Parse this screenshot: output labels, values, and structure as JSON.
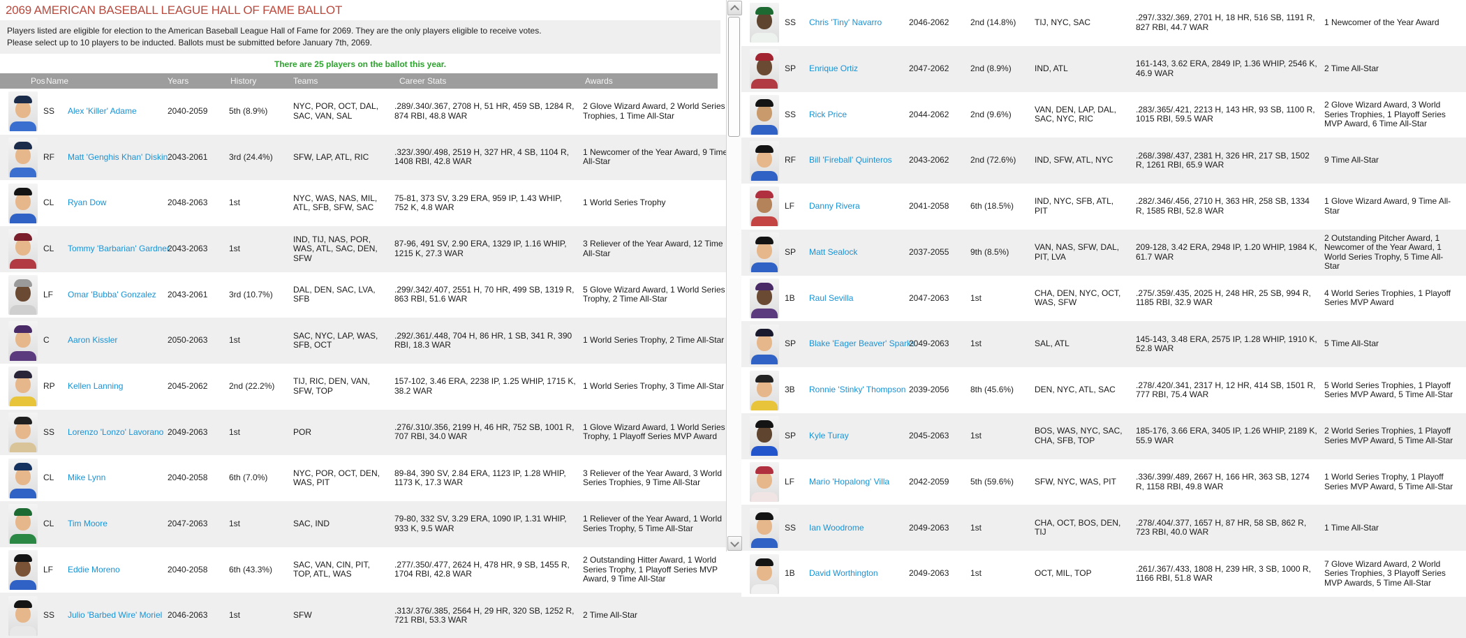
{
  "page": {
    "title": "2069 AMERICAN BASEBALL LEAGUE HALL OF FAME BALLOT",
    "description_lines": [
      "Players listed are eligible for election to the American Baseball League Hall of Fame for 2069. They are the only players eligible to receive votes.",
      "Please select up to 10 players to be inducted. Ballots must be submitted before January 7th, 2069."
    ],
    "ballot_note": "There are 25 players on the ballot this year.",
    "colors": {
      "title_red": "#b8493d",
      "note_green": "#2ca32c",
      "link_blue": "#1992d4",
      "header_bg": "#9d9d9d",
      "row_alt_bg": "#efefef"
    }
  },
  "table": {
    "columns": [
      "Pos",
      "Name",
      "Years",
      "History",
      "Teams",
      "Career Stats",
      "Awards"
    ],
    "players_left": [
      {
        "pos": "SS",
        "name": "Alex 'Killer' Adame",
        "years": "2040-2059",
        "history": "5th (8.9%)",
        "teams": "NYC, POR, OCT, DAL, SAC, VAN, SAL",
        "stats": ".289/.340/.367, 2708 H, 51 HR, 459 SB, 1284 R, 874 RBI, 48.8 WAR",
        "awards": "2 Glove Wizard Award, 2 World Series Trophies, 1 Time All-Star",
        "photo": {
          "cap": "#1b2b4a",
          "skin": "#e7b78c",
          "jersey": "#3a6fd0"
        }
      },
      {
        "pos": "RF",
        "name": "Matt 'Genghis Khan' Diskin",
        "years": "2043-2061",
        "history": "3rd (24.4%)",
        "teams": "SFW, LAP, ATL, RIC",
        "stats": ".323/.390/.498, 2519 H, 327 HR, 4 SB, 1104 R, 1408 RBI, 42.8 WAR",
        "awards": "1 Newcomer of the Year Award, 9 Time All-Star",
        "photo": {
          "cap": "#1b2b4a",
          "skin": "#e7b78c",
          "jersey": "#3a6fd0"
        }
      },
      {
        "pos": "CL",
        "name": "Ryan Dow",
        "years": "2048-2063",
        "history": "1st",
        "teams": "NYC, WAS, NAS, MIL, ATL, SFB, SFW, SAC",
        "stats": "75-81, 373 SV, 3.29 ERA, 959 IP, 1.43 WHIP, 752 K, 4.8 WAR",
        "awards": "1 World Series Trophy",
        "photo": {
          "cap": "#141414",
          "skin": "#e7b78c",
          "jersey": "#2f62c4"
        }
      },
      {
        "pos": "CL",
        "name": "Tommy 'Barbarian' Gardner",
        "years": "2043-2063",
        "history": "1st",
        "teams": "IND, TIJ, NAS, POR, WAS, ATL, SAC, DEN, SFW",
        "stats": "87-96, 491 SV, 2.90 ERA, 1329 IP, 1.16 WHIP, 1215 K, 27.3 WAR",
        "awards": "3 Reliever of the Year Award, 12 Time All-Star",
        "photo": {
          "cap": "#7a1f2b",
          "skin": "#e7b78c",
          "jersey": "#b23a42"
        }
      },
      {
        "pos": "LF",
        "name": "Omar 'Bubba' Gonzalez",
        "years": "2043-2061",
        "history": "3rd (10.7%)",
        "teams": "DAL, DEN, SAC, LVA, SFB",
        "stats": ".299/.342/.407, 2551 H, 70 HR, 499 SB, 1319 R, 863 RBI, 51.6 WAR",
        "awards": "5 Glove Wizard Award, 1 World Series Trophy, 2 Time All-Star",
        "photo": {
          "cap": "#9a9a9a",
          "skin": "#6b4a33",
          "jersey": "#cfcfcf"
        }
      },
      {
        "pos": "C",
        "name": "Aaron Kissler",
        "years": "2050-2063",
        "history": "1st",
        "teams": "SAC, NYC, LAP, WAS, SFB, OCT",
        "stats": ".292/.361/.448, 704 H, 86 HR, 1 SB, 341 R, 390 RBI, 18.3 WAR",
        "awards": "1 World Series Trophy, 2 Time All-Star",
        "photo": {
          "cap": "#4a2a66",
          "skin": "#e7b78c",
          "jersey": "#5b3b7e"
        }
      },
      {
        "pos": "RP",
        "name": "Kellen Lanning",
        "years": "2045-2062",
        "history": "2nd (22.2%)",
        "teams": "TIJ, RIC, DEN, VAN, SFW, TOP",
        "stats": "157-102, 3.46 ERA, 2238 IP, 1.25 WHIP, 1715 K, 38.2 WAR",
        "awards": "1 World Series Trophy, 3 Time All-Star",
        "photo": {
          "cap": "#2a2438",
          "skin": "#e7b78c",
          "jersey": "#e8c43a"
        }
      },
      {
        "pos": "SS",
        "name": "Lorenzo 'Lonzo' Lavorano",
        "years": "2049-2063",
        "history": "1st",
        "teams": "POR",
        "stats": ".276/.310/.356, 2199 H, 46 HR, 752 SB, 1001 R, 707 RBI, 34.0 WAR",
        "awards": "1 Glove Wizard Award, 1 World Series Trophy, 1 Playoff Series MVP Award",
        "photo": {
          "cap": "#1f1f1f",
          "skin": "#e7b78c",
          "jersey": "#d9c49a"
        }
      },
      {
        "pos": "CL",
        "name": "Mike Lynn",
        "years": "2040-2058",
        "history": "6th (7.0%)",
        "teams": "NYC, POR, OCT, DEN, WAS, PIT",
        "stats": "89-84, 390 SV, 2.84 ERA, 1123 IP, 1.28 WHIP, 1173 K, 17.3 WAR",
        "awards": "3 Reliever of the Year Award, 3 World Series Trophies, 9 Time All-Star",
        "photo": {
          "cap": "#15335e",
          "skin": "#e7b78c",
          "jersey": "#2f62c4"
        }
      },
      {
        "pos": "CL",
        "name": "Tim Moore",
        "years": "2047-2063",
        "history": "1st",
        "teams": "SAC, IND",
        "stats": "79-80, 332 SV, 3.29 ERA, 1090 IP, 1.31 WHIP, 933 K, 9.5 WAR",
        "awards": "1 Reliever of the Year Award, 1 World Series Trophy, 5 Time All-Star",
        "photo": {
          "cap": "#1d6b33",
          "skin": "#e7b78c",
          "jersey": "#2a8844"
        }
      },
      {
        "pos": "LF",
        "name": "Eddie Moreno",
        "years": "2040-2058",
        "history": "6th (43.3%)",
        "teams": "SAC, VAN, CIN, PIT, TOP, ATL, WAS",
        "stats": ".277/.350/.477, 2624 H, 478 HR, 9 SB, 1455 R, 1704 RBI, 42.8 WAR",
        "awards": "2 Outstanding Hitter Award, 1 World Series Trophy, 1 Playoff Series MVP Award, 9 Time All-Star",
        "photo": {
          "cap": "#141414",
          "skin": "#7a5236",
          "jersey": "#2f62c4"
        }
      },
      {
        "pos": "SS",
        "name": "Julio 'Barbed Wire' Moriel",
        "years": "2046-2063",
        "history": "1st",
        "teams": "SFW",
        "stats": ".313/.376/.385, 2564 H, 29 HR, 320 SB, 1252 R, 721 RBI, 53.3 WAR",
        "awards": "2 Time All-Star",
        "photo": {
          "cap": "#141414",
          "skin": "#e7b78c",
          "jersey": "#e8e8e8"
        }
      }
    ],
    "players_right": [
      {
        "pos": "SS",
        "name": "Chris 'Tiny' Navarro",
        "years": "2046-2062",
        "history": "2nd (14.8%)",
        "teams": "TIJ, NYC, SAC",
        "stats": ".297/.332/.369, 2701 H, 18 HR, 516 SB, 1191 R, 827 RBI, 44.7 WAR",
        "awards": "1 Newcomer of the Year Award",
        "photo": {
          "cap": "#1d6b33",
          "skin": "#5f4430",
          "jersey": "#eef2ee"
        }
      },
      {
        "pos": "SP",
        "name": "Enrique Ortiz",
        "years": "2047-2062",
        "history": "2nd (8.9%)",
        "teams": "IND, ATL",
        "stats": "161-143, 3.62 ERA, 2849 IP, 1.36 WHIP, 2546 K, 46.9 WAR",
        "awards": "2 Time All-Star",
        "photo": {
          "cap": "#a32431",
          "skin": "#6b4a33",
          "jersey": "#b23a42"
        }
      },
      {
        "pos": "SS",
        "name": "Rick Price",
        "years": "2044-2062",
        "history": "2nd (9.6%)",
        "teams": "VAN, DEN, LAP, DAL, SAC, NYC, RIC",
        "stats": ".283/.365/.421, 2213 H, 143 HR, 93 SB, 1100 R, 1015 RBI, 59.5 WAR",
        "awards": "2 Glove Wizard Award, 3 World Series Trophies, 1 Playoff Series MVP Award, 6 Time All-Star",
        "photo": {
          "cap": "#141414",
          "skin": "#c99a6b",
          "jersey": "#2f62c4"
        }
      },
      {
        "pos": "RF",
        "name": "Bill 'Fireball' Quinteros",
        "years": "2043-2062",
        "history": "2nd (72.6%)",
        "teams": "IND, SFW, ATL, NYC",
        "stats": ".268/.398/.437, 2381 H, 326 HR, 217 SB, 1502 R, 1261 RBI, 65.9 WAR",
        "awards": "9 Time All-Star",
        "photo": {
          "cap": "#141414",
          "skin": "#e7b78c",
          "jersey": "#2f62c4"
        }
      },
      {
        "pos": "LF",
        "name": "Danny Rivera",
        "years": "2041-2058",
        "history": "6th (18.5%)",
        "teams": "IND, NYC, SFB, ATL, PIT",
        "stats": ".282/.346/.456, 2710 H, 363 HR, 258 SB, 1334 R, 1585 RBI, 52.8 WAR",
        "awards": "1 Glove Wizard Award, 9 Time All-Star",
        "photo": {
          "cap": "#b03040",
          "skin": "#b5835a",
          "jersey": "#c44444"
        }
      },
      {
        "pos": "SP",
        "name": "Matt Sealock",
        "years": "2037-2055",
        "history": "9th (8.5%)",
        "teams": "VAN, NAS, SFW, DAL, PIT, LVA",
        "stats": "209-128, 3.42 ERA, 2948 IP, 1.20 WHIP, 1984 K, 61.7 WAR",
        "awards": "2 Outstanding Pitcher Award, 1 Newcomer of the Year Award, 1 World Series Trophy, 5 Time All-Star",
        "photo": {
          "cap": "#141414",
          "skin": "#e7b78c",
          "jersey": "#2f62c4"
        }
      },
      {
        "pos": "1B",
        "name": "Raul Sevilla",
        "years": "2047-2063",
        "history": "1st",
        "teams": "CHA, DEN, NYC, OCT, WAS, SFW",
        "stats": ".275/.359/.435, 2025 H, 248 HR, 25 SB, 994 R, 1185 RBI, 32.9 WAR",
        "awards": "4 World Series Trophies, 1 Playoff Series MVP Award",
        "photo": {
          "cap": "#4a2a66",
          "skin": "#6b4a33",
          "jersey": "#5b3b7e"
        }
      },
      {
        "pos": "SP",
        "name": "Blake 'Eager Beaver' Sparks",
        "years": "2049-2063",
        "history": "1st",
        "teams": "SAL, ATL",
        "stats": "145-143, 3.48 ERA, 2575 IP, 1.28 WHIP, 1910 K, 52.8 WAR",
        "awards": "5 Time All-Star",
        "photo": {
          "cap": "#1a1a2e",
          "skin": "#e7b78c",
          "jersey": "#2f62c4"
        }
      },
      {
        "pos": "3B",
        "name": "Ronnie 'Stinky' Thompson",
        "years": "2039-2056",
        "history": "8th (45.6%)",
        "teams": "DEN, NYC, ATL, SAC",
        "stats": ".278/.420/.341, 2317 H, 12 HR, 414 SB, 1501 R, 777 RBI, 75.4 WAR",
        "awards": "5 World Series Trophies, 1 Playoff Series MVP Award, 5 Time All-Star",
        "photo": {
          "cap": "#222222",
          "skin": "#e7b78c",
          "jersey": "#e8c43a"
        }
      },
      {
        "pos": "SP",
        "name": "Kyle Turay",
        "years": "2045-2063",
        "history": "1st",
        "teams": "BOS, WAS, NYC, SAC, CHA, SFB, TOP",
        "stats": "185-176, 3.66 ERA, 3405 IP, 1.26 WHIP, 2189 K, 55.9 WAR",
        "awards": "2 World Series Trophies, 1 Playoff Series MVP Award, 5 Time All-Star",
        "photo": {
          "cap": "#141414",
          "skin": "#5f4430",
          "jersey": "#2255cc"
        }
      },
      {
        "pos": "LF",
        "name": "Mario 'Hopalong' Villa",
        "years": "2042-2059",
        "history": "5th (59.6%)",
        "teams": "SFW, NYC, WAS, PIT",
        "stats": ".336/.399/.489, 2667 H, 166 HR, 363 SB, 1274 R, 1158 RBI, 49.8 WAR",
        "awards": "1 World Series Trophy, 1 Playoff Series MVP Award, 5 Time All-Star",
        "photo": {
          "cap": "#b03040",
          "skin": "#e7b78c",
          "jersey": "#f0e4e4"
        }
      },
      {
        "pos": "SS",
        "name": "Ian Woodrome",
        "years": "2049-2063",
        "history": "1st",
        "teams": "CHA, OCT, BOS, DEN, TIJ",
        "stats": ".278/.404/.377, 1657 H, 87 HR, 58 SB, 862 R, 723 RBI, 40.0 WAR",
        "awards": "1 Time All-Star",
        "photo": {
          "cap": "#141414",
          "skin": "#e7b78c",
          "jersey": "#2f62c4"
        }
      },
      {
        "pos": "1B",
        "name": "David Worthington",
        "years": "2049-2063",
        "history": "1st",
        "teams": "OCT, MIL, TOP",
        "stats": ".261/.367/.433, 1808 H, 239 HR, 3 SB, 1000 R, 1166 RBI, 51.8 WAR",
        "awards": "7 Glove Wizard Award, 2 World Series Trophies, 3 Playoff Series MVP Awards, 5 Time All-Star",
        "photo": {
          "cap": "#141414",
          "skin": "#e7b78c",
          "jersey": "#f0f0f0"
        }
      }
    ]
  }
}
